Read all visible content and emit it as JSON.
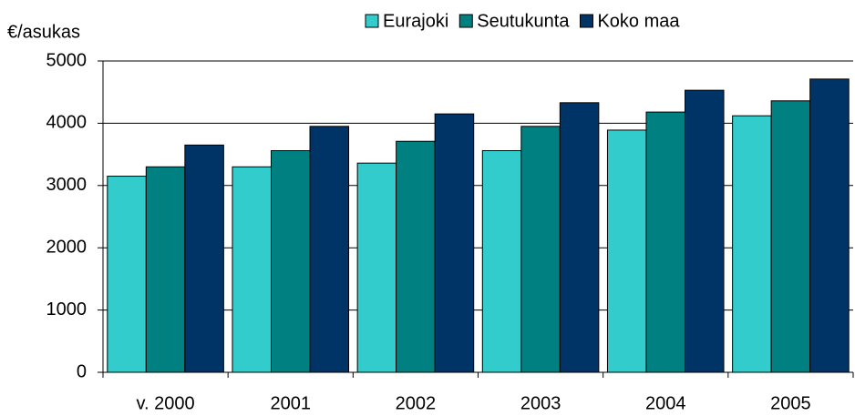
{
  "chart_data": {
    "type": "bar",
    "y_label": "€/asukas",
    "categories": [
      "v. 2000",
      "2001",
      "2002",
      "2003",
      "2004",
      "2005"
    ],
    "series": [
      {
        "name": "Eurajoki",
        "color": "#33cccc",
        "values": [
          3150,
          3300,
          3360,
          3560,
          3890,
          4120
        ]
      },
      {
        "name": "Seutukunta",
        "color": "#008080",
        "values": [
          3300,
          3560,
          3710,
          3950,
          4180,
          4360
        ]
      },
      {
        "name": "Koko maa",
        "color": "#003366",
        "values": [
          3650,
          3950,
          4150,
          4330,
          4530,
          4710
        ]
      }
    ],
    "ylim": [
      0,
      5000
    ],
    "yticks": [
      0,
      1000,
      2000,
      3000,
      4000,
      5000
    ],
    "grid": true,
    "legend": "top"
  }
}
